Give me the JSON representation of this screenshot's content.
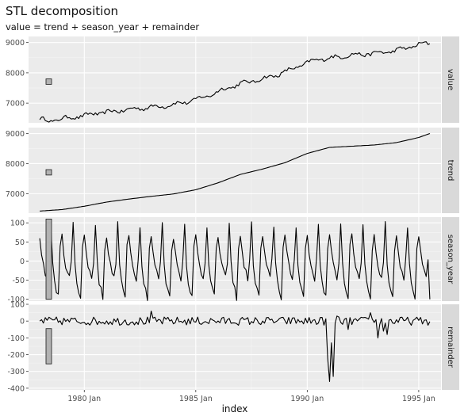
{
  "chart_data": {
    "type": "line",
    "title": "STL decomposition",
    "subtitle": "value = trend + season_year + remainder",
    "xlabel": "index",
    "x_ticks": [
      "1980 Jan",
      "1985 Jan",
      "1990 Jan",
      "1995 Jan"
    ],
    "x_start": "1978 Jan",
    "x_end": "1995 Jul",
    "x_frequency": "monthly",
    "background": "#ebebeb",
    "grid": true,
    "strip_color": "#d9d9d9",
    "line_color": "#000000",
    "panels": [
      {
        "name": "value",
        "ylim": [
          6350,
          9200
        ],
        "y_ticks": [
          7000,
          8000,
          9000
        ],
        "scale_bar": [
          7620,
          7800
        ],
        "knots": [
          [
            1978.0,
            6470
          ],
          [
            1978.25,
            6440
          ],
          [
            1978.5,
            6420
          ],
          [
            1979.0,
            6480
          ],
          [
            1979.5,
            6540
          ],
          [
            1980.0,
            6580
          ],
          [
            1980.5,
            6660
          ],
          [
            1981.0,
            6700
          ],
          [
            1981.5,
            6740
          ],
          [
            1982.0,
            6790
          ],
          [
            1982.5,
            6830
          ],
          [
            1983.0,
            6870
          ],
          [
            1983.5,
            6900
          ],
          [
            1984.0,
            6960
          ],
          [
            1984.5,
            7020
          ],
          [
            1985.0,
            7120
          ],
          [
            1985.5,
            7230
          ],
          [
            1986.0,
            7380
          ],
          [
            1986.5,
            7520
          ],
          [
            1987.0,
            7640
          ],
          [
            1987.5,
            7720
          ],
          [
            1988.0,
            7800
          ],
          [
            1988.5,
            7900
          ],
          [
            1989.0,
            8030
          ],
          [
            1989.5,
            8180
          ],
          [
            1990.0,
            8330
          ],
          [
            1990.5,
            8450
          ],
          [
            1991.0,
            8480
          ],
          [
            1991.5,
            8540
          ],
          [
            1992.0,
            8590
          ],
          [
            1992.5,
            8610
          ],
          [
            1993.0,
            8640
          ],
          [
            1993.5,
            8680
          ],
          [
            1994.0,
            8740
          ],
          [
            1994.5,
            8830
          ],
          [
            1995.0,
            8930
          ],
          [
            1995.5,
            8980
          ]
        ],
        "noise": 55,
        "seasonal_amp": 45
      },
      {
        "name": "trend",
        "ylim": [
          6350,
          9200
        ],
        "y_ticks": [
          7000,
          8000,
          9000
        ],
        "scale_bar": [
          7620,
          7800
        ],
        "knots": [
          [
            1978.0,
            6420
          ],
          [
            1979.0,
            6470
          ],
          [
            1980.0,
            6580
          ],
          [
            1981.0,
            6720
          ],
          [
            1982.0,
            6820
          ],
          [
            1983.0,
            6910
          ],
          [
            1984.0,
            6990
          ],
          [
            1985.0,
            7130
          ],
          [
            1986.0,
            7360
          ],
          [
            1987.0,
            7640
          ],
          [
            1988.0,
            7820
          ],
          [
            1989.0,
            8030
          ],
          [
            1990.0,
            8340
          ],
          [
            1991.0,
            8540
          ],
          [
            1992.0,
            8580
          ],
          [
            1993.0,
            8620
          ],
          [
            1994.0,
            8700
          ],
          [
            1995.0,
            8870
          ],
          [
            1995.6,
            9030
          ]
        ],
        "noise": 0,
        "seasonal_amp": 0
      },
      {
        "name": "season_year",
        "ylim": [
          -105,
          115
        ],
        "y_ticks": [
          -100,
          -50,
          0,
          50,
          100
        ],
        "scale_bar": [
          -100,
          110
        ],
        "pattern": [
          65,
          20,
          -10,
          -30,
          -45,
          0,
          95,
          -5,
          -55,
          -75,
          -95,
          35
        ],
        "end_value": -100
      },
      {
        "name": "remainder",
        "ylim": [
          -410,
          100
        ],
        "y_ticks": [
          -400,
          -300,
          -200,
          -100,
          0,
          100
        ],
        "scale_bar": [
          -255,
          -45
        ],
        "spikes": [
          [
            1983.0,
            60
          ],
          [
            1990.9,
            -220
          ],
          [
            1991.0,
            -360
          ],
          [
            1991.1,
            -130
          ],
          [
            1991.2,
            -330
          ],
          [
            1991.3,
            -250
          ],
          [
            1991.35,
            30
          ],
          [
            1991.8,
            -50
          ],
          [
            1992.8,
            50
          ],
          [
            1993.2,
            -100
          ],
          [
            1993.4,
            -60
          ],
          [
            1993.6,
            -80
          ]
        ],
        "noise": 25
      }
    ]
  }
}
